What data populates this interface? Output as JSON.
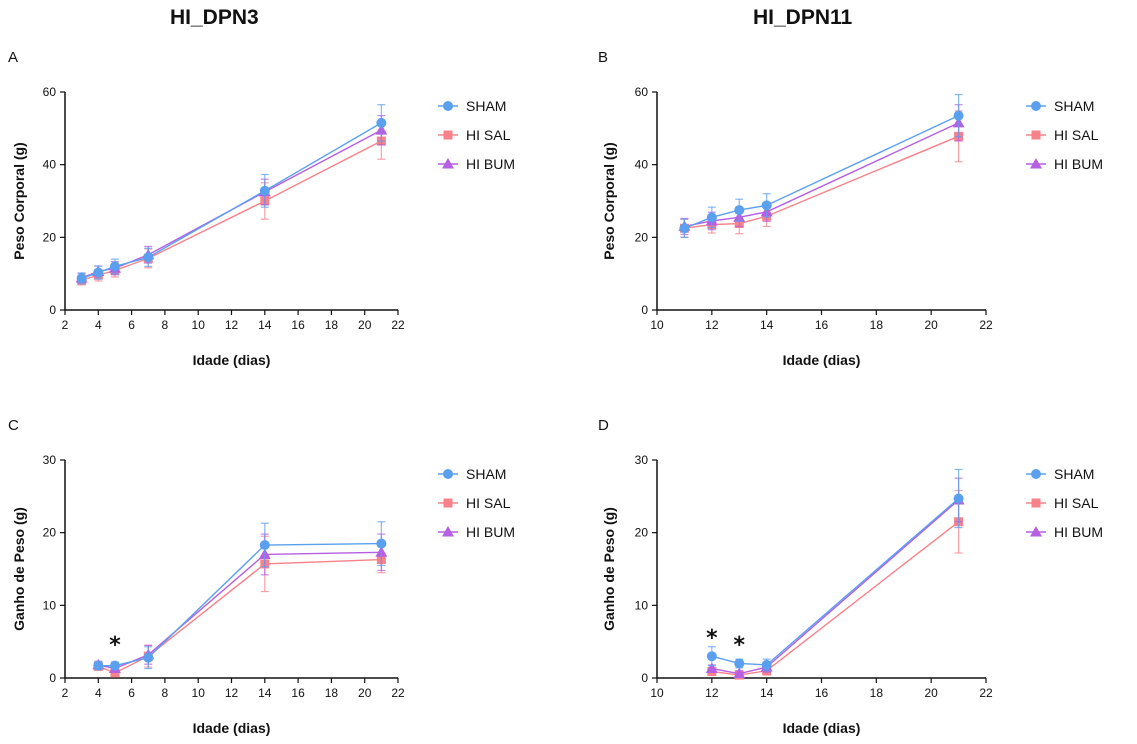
{
  "figure": {
    "left_title": "HI_DPN3",
    "right_title": "HI_DPN11"
  },
  "colors": {
    "SHAM": "#5aa0ee",
    "HI SAL": "#f7828a",
    "HI BUM": "#b65fe2"
  },
  "chart_data": [
    {
      "panel": "A",
      "type": "line",
      "xlabel": "Idade (dias)",
      "ylabel": "Peso Corporal (g)",
      "xlim": [
        2,
        22
      ],
      "ylim": [
        0,
        60
      ],
      "xticks": [
        2,
        4,
        6,
        8,
        10,
        12,
        14,
        16,
        18,
        20,
        22
      ],
      "yticks": [
        0,
        20,
        40,
        60
      ],
      "legend": "right",
      "x": [
        3,
        4,
        5,
        7,
        14,
        21
      ],
      "series": [
        {
          "name": "SHAM",
          "marker": "circle",
          "values": [
            8.7,
            10.3,
            12.0,
            14.5,
            32.8,
            51.5
          ],
          "errors": [
            1.5,
            1.8,
            2.0,
            2.5,
            4.5,
            5.0
          ]
        },
        {
          "name": "HI SAL",
          "marker": "square",
          "values": [
            8.2,
            9.6,
            10.9,
            14.2,
            30.0,
            46.5
          ],
          "errors": [
            1.3,
            1.6,
            1.8,
            2.6,
            5.0,
            5.0
          ]
        },
        {
          "name": "HI BUM",
          "marker": "triangle",
          "values": [
            8.8,
            10.6,
            11.5,
            15.2,
            32.5,
            49.5
          ],
          "errors": [
            1.2,
            1.5,
            1.8,
            2.3,
            3.5,
            4.0
          ]
        }
      ],
      "annotations": []
    },
    {
      "panel": "B",
      "type": "line",
      "xlabel": "Idade (dias)",
      "ylabel": "Peso Corporal (g)",
      "xlim": [
        10,
        22
      ],
      "ylim": [
        0,
        60
      ],
      "xticks": [
        10,
        12,
        14,
        16,
        18,
        20,
        22
      ],
      "yticks": [
        0,
        20,
        40,
        60
      ],
      "legend": "right",
      "x": [
        11,
        12,
        13,
        14,
        21
      ],
      "series": [
        {
          "name": "SHAM",
          "marker": "circle",
          "values": [
            22.5,
            25.5,
            27.5,
            28.8,
            53.5
          ],
          "errors": [
            2.5,
            2.8,
            3.0,
            3.2,
            5.8
          ]
        },
        {
          "name": "HI SAL",
          "marker": "square",
          "values": [
            22.5,
            23.5,
            23.8,
            25.8,
            47.8
          ],
          "errors": [
            2.5,
            2.3,
            2.8,
            2.8,
            7.0
          ]
        },
        {
          "name": "HI BUM",
          "marker": "triangle",
          "values": [
            23.0,
            24.5,
            25.5,
            27.0,
            51.5
          ],
          "errors": [
            2.2,
            2.4,
            2.5,
            2.6,
            5.0
          ]
        }
      ],
      "annotations": []
    },
    {
      "panel": "C",
      "type": "line",
      "xlabel": "Idade (dias)",
      "ylabel": "Ganho de Peso (g)",
      "xlim": [
        2,
        22
      ],
      "ylim": [
        0,
        30
      ],
      "xticks": [
        2,
        4,
        6,
        8,
        10,
        12,
        14,
        16,
        18,
        20,
        22
      ],
      "yticks": [
        0,
        10,
        20,
        30
      ],
      "legend": "right",
      "x": [
        4,
        5,
        7,
        14,
        21
      ],
      "series": [
        {
          "name": "SHAM",
          "marker": "circle",
          "values": [
            1.7,
            1.7,
            2.8,
            18.3,
            18.5
          ],
          "errors": [
            0.5,
            0.5,
            1.5,
            3.0,
            3.0
          ]
        },
        {
          "name": "HI SAL",
          "marker": "square",
          "values": [
            1.6,
            0.7,
            3.0,
            15.7,
            16.3
          ],
          "errors": [
            0.5,
            0.4,
            1.5,
            3.8,
            1.8
          ]
        },
        {
          "name": "HI BUM",
          "marker": "triangle",
          "values": [
            1.8,
            1.3,
            3.2,
            17.0,
            17.3
          ],
          "errors": [
            0.5,
            0.5,
            1.3,
            2.8,
            2.5
          ]
        }
      ],
      "annotations": [
        {
          "x": 5,
          "y": 4.8,
          "text": "*"
        }
      ]
    },
    {
      "panel": "D",
      "type": "line",
      "xlabel": "Idade (dias)",
      "ylabel": "Ganho de Peso (g)",
      "xlim": [
        10,
        22
      ],
      "ylim": [
        0,
        30
      ],
      "xticks": [
        10,
        12,
        14,
        16,
        18,
        20,
        22
      ],
      "yticks": [
        0,
        10,
        20,
        30
      ],
      "legend": "right",
      "x": [
        12,
        13,
        14,
        21
      ],
      "series": [
        {
          "name": "SHAM",
          "marker": "circle",
          "values": [
            3.0,
            2.0,
            1.8,
            24.7
          ],
          "errors": [
            1.3,
            0.6,
            0.8,
            4.0
          ]
        },
        {
          "name": "HI SAL",
          "marker": "square",
          "values": [
            0.9,
            0.4,
            1.0,
            21.5
          ],
          "errors": [
            0.4,
            0.3,
            0.6,
            4.3
          ]
        },
        {
          "name": "HI BUM",
          "marker": "triangle",
          "values": [
            1.3,
            0.6,
            1.5,
            24.5
          ],
          "errors": [
            0.5,
            0.4,
            0.7,
            3.0
          ]
        }
      ],
      "annotations": [
        {
          "x": 12,
          "y": 5.8,
          "text": "*"
        },
        {
          "x": 13,
          "y": 4.8,
          "text": "*"
        }
      ]
    }
  ]
}
